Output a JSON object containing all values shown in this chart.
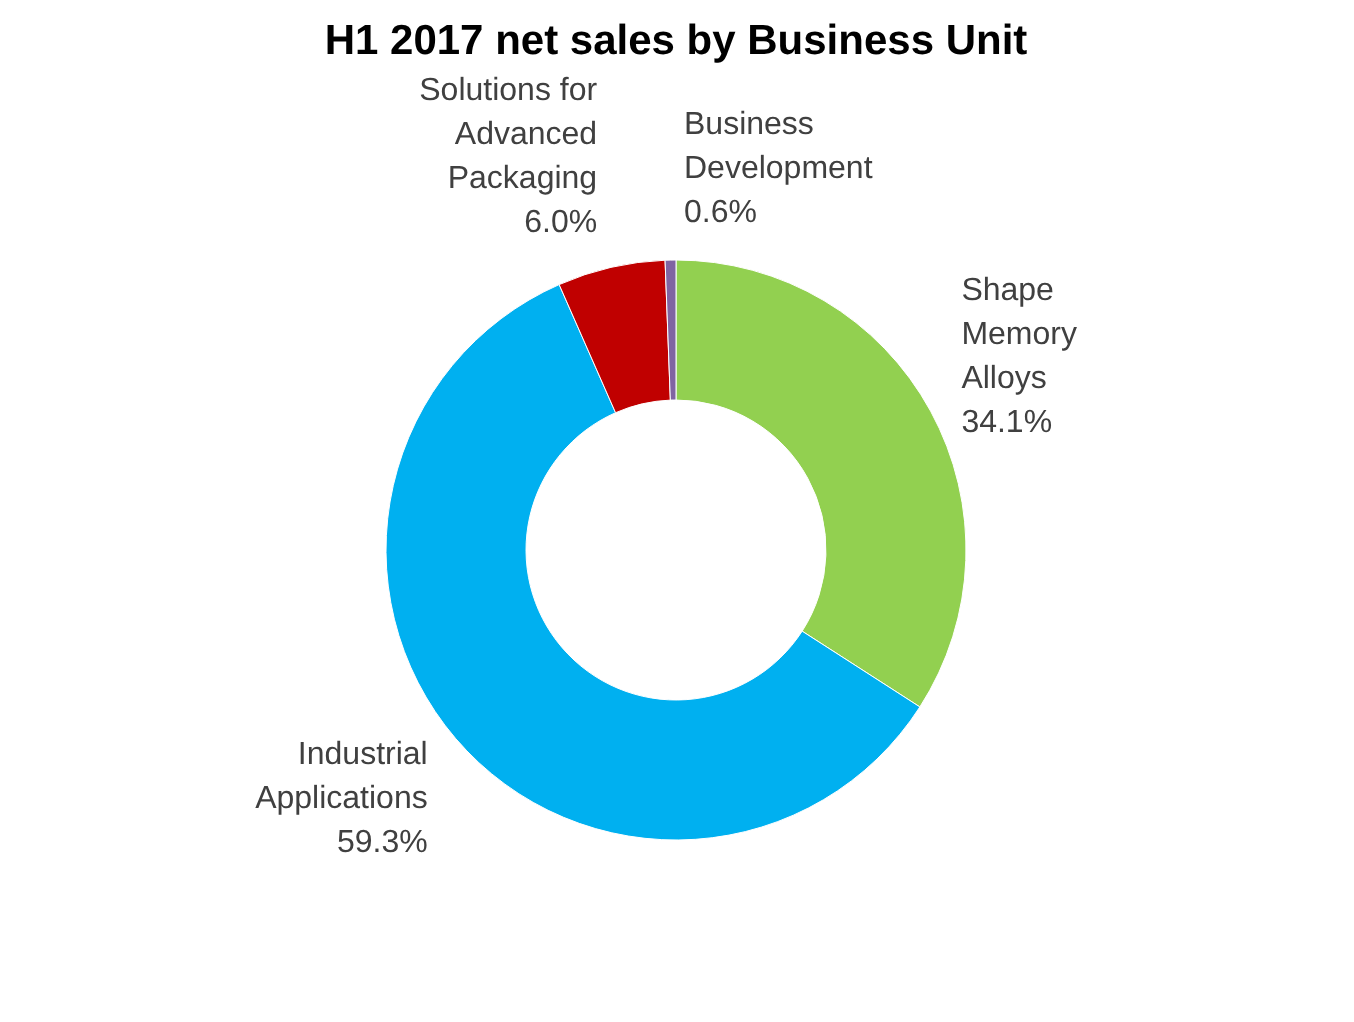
{
  "chart_data": {
    "type": "donut",
    "title": "H1 2017 net sales by Business Unit",
    "categories": [
      "Shape Memory Alloys",
      "Industrial Applications",
      "Solutions for Advanced Packaging",
      "Business Development"
    ],
    "values": [
      34.1,
      59.3,
      6.0,
      0.6
    ],
    "colors": [
      "#92d050",
      "#00b0f0",
      "#c00000",
      "#8064a2"
    ],
    "value_labels": [
      "34.1%",
      "59.3%",
      "6.0%",
      "0.6%"
    ]
  }
}
